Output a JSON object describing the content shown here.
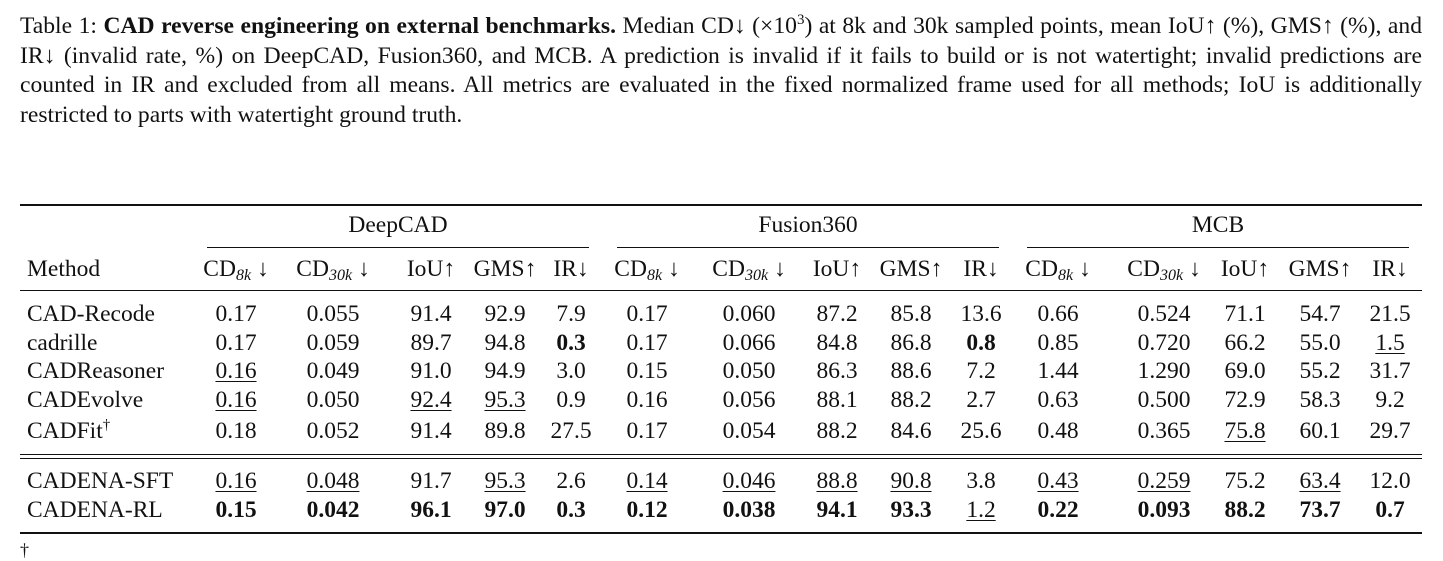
{
  "caption": {
    "label": "Table 1:",
    "title": "CAD reverse engineering on external benchmarks.",
    "body_1": " Median CD↓ (×10",
    "exp": "3",
    "body_2": ") at 8k and 30k sampled points, mean IoU↑ (%), GMS↑ (%), and IR↓ (invalid rate, %) on DeepCAD, Fusion360, and MCB. A prediction is invalid if it fails to build or is not watertight; invalid predictions are counted in IR and excluded from all means. All metrics are evaluated in the fixed normalized frame used for all methods; IoU is additionally restricted to parts with watertight ground truth."
  },
  "table": {
    "method_header": "Method",
    "groups": [
      "DeepCAD",
      "Fusion360",
      "MCB"
    ],
    "columns": [
      {
        "base": "CD",
        "sub": "8k",
        "arrow": " ↓"
      },
      {
        "base": "CD",
        "sub": "30k",
        "arrow": " ↓"
      },
      {
        "base": "IoU↑",
        "sub": "",
        "arrow": ""
      },
      {
        "base": "GMS↑",
        "sub": "",
        "arrow": ""
      },
      {
        "base": "IR↓",
        "sub": "",
        "arrow": ""
      }
    ],
    "rows": [
      {
        "method": "CAD-Recode",
        "dagger": "",
        "values": [
          [
            "0.17",
            ""
          ],
          [
            "0.055",
            ""
          ],
          [
            "91.4",
            ""
          ],
          [
            "92.9",
            ""
          ],
          [
            "7.9",
            ""
          ],
          [
            "0.17",
            ""
          ],
          [
            "0.060",
            ""
          ],
          [
            "87.2",
            ""
          ],
          [
            "85.8",
            ""
          ],
          [
            "13.6",
            ""
          ],
          [
            "0.66",
            ""
          ],
          [
            "0.524",
            ""
          ],
          [
            "71.1",
            ""
          ],
          [
            "54.7",
            ""
          ],
          [
            "21.5",
            ""
          ]
        ]
      },
      {
        "method": "cadrille",
        "dagger": "",
        "values": [
          [
            "0.17",
            ""
          ],
          [
            "0.059",
            ""
          ],
          [
            "89.7",
            ""
          ],
          [
            "94.8",
            ""
          ],
          [
            "0.3",
            "b"
          ],
          [
            "0.17",
            ""
          ],
          [
            "0.066",
            ""
          ],
          [
            "84.8",
            ""
          ],
          [
            "86.8",
            ""
          ],
          [
            "0.8",
            "b"
          ],
          [
            "0.85",
            ""
          ],
          [
            "0.720",
            ""
          ],
          [
            "66.2",
            ""
          ],
          [
            "55.0",
            ""
          ],
          [
            "1.5",
            "u"
          ]
        ]
      },
      {
        "method": "CADReasoner",
        "dagger": "",
        "values": [
          [
            "0.16",
            "u"
          ],
          [
            "0.049",
            ""
          ],
          [
            "91.0",
            ""
          ],
          [
            "94.9",
            ""
          ],
          [
            "3.0",
            ""
          ],
          [
            "0.15",
            ""
          ],
          [
            "0.050",
            ""
          ],
          [
            "86.3",
            ""
          ],
          [
            "88.6",
            ""
          ],
          [
            "7.2",
            ""
          ],
          [
            "1.44",
            ""
          ],
          [
            "1.290",
            ""
          ],
          [
            "69.0",
            ""
          ],
          [
            "55.2",
            ""
          ],
          [
            "31.7",
            ""
          ]
        ]
      },
      {
        "method": "CADEvolve",
        "dagger": "",
        "values": [
          [
            "0.16",
            "u"
          ],
          [
            "0.050",
            ""
          ],
          [
            "92.4",
            "u"
          ],
          [
            "95.3",
            "u"
          ],
          [
            "0.9",
            ""
          ],
          [
            "0.16",
            ""
          ],
          [
            "0.056",
            ""
          ],
          [
            "88.1",
            ""
          ],
          [
            "88.2",
            ""
          ],
          [
            "2.7",
            ""
          ],
          [
            "0.63",
            ""
          ],
          [
            "0.500",
            ""
          ],
          [
            "72.9",
            ""
          ],
          [
            "58.3",
            ""
          ],
          [
            "9.2",
            ""
          ]
        ]
      },
      {
        "method": "CADFit",
        "dagger": "†",
        "values": [
          [
            "0.18",
            ""
          ],
          [
            "0.052",
            ""
          ],
          [
            "91.4",
            ""
          ],
          [
            "89.8",
            ""
          ],
          [
            "27.5",
            ""
          ],
          [
            "0.17",
            ""
          ],
          [
            "0.054",
            ""
          ],
          [
            "88.2",
            ""
          ],
          [
            "84.6",
            ""
          ],
          [
            "25.6",
            ""
          ],
          [
            "0.48",
            ""
          ],
          [
            "0.365",
            ""
          ],
          [
            "75.8",
            "u"
          ],
          [
            "60.1",
            ""
          ],
          [
            "29.7",
            ""
          ]
        ]
      },
      {
        "method": "CADENA-SFT",
        "dagger": "",
        "values": [
          [
            "0.16",
            "u"
          ],
          [
            "0.048",
            "u"
          ],
          [
            "91.7",
            ""
          ],
          [
            "95.3",
            "u"
          ],
          [
            "2.6",
            ""
          ],
          [
            "0.14",
            "u"
          ],
          [
            "0.046",
            "u"
          ],
          [
            "88.8",
            "u"
          ],
          [
            "90.8",
            "u"
          ],
          [
            "3.8",
            ""
          ],
          [
            "0.43",
            "u"
          ],
          [
            "0.259",
            "u"
          ],
          [
            "75.2",
            ""
          ],
          [
            "63.4",
            "u"
          ],
          [
            "12.0",
            ""
          ]
        ]
      },
      {
        "method": "CADENA-RL",
        "dagger": "",
        "values": [
          [
            "0.15",
            "b"
          ],
          [
            "0.042",
            "b"
          ],
          [
            "96.1",
            "b"
          ],
          [
            "97.0",
            "b"
          ],
          [
            "0.3",
            "b"
          ],
          [
            "0.12",
            "b"
          ],
          [
            "0.038",
            "b"
          ],
          [
            "94.1",
            "b"
          ],
          [
            "93.3",
            "b"
          ],
          [
            "1.2",
            "u"
          ],
          [
            "0.22",
            "b"
          ],
          [
            "0.093",
            "b"
          ],
          [
            "88.2",
            "b"
          ],
          [
            "73.7",
            "b"
          ],
          [
            "0.7",
            "b"
          ]
        ]
      }
    ]
  },
  "footnote": "†"
}
